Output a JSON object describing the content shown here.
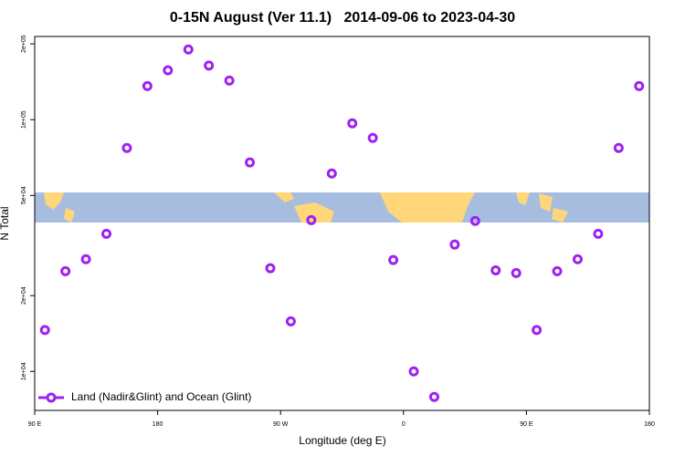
{
  "chart_data": {
    "type": "scatter",
    "title": "0-15N August (Ver 11.1)   2014-09-06 to 2023-04-30",
    "x_label": "Longitude (deg E)",
    "y_label": "N Total",
    "log_y": true,
    "legend_position": "lower left",
    "xlim": [
      90,
      540
    ],
    "ylim": [
      7000,
      214000
    ],
    "xticks": [
      {
        "value": 90,
        "label": "90 E"
      },
      180,
      {
        "value": 270,
        "label": "90 W"
      },
      {
        "value": 360,
        "label": "0"
      },
      {
        "value": 450,
        "label": "90 E"
      },
      {
        "value": 540,
        "label": "180"
      }
    ],
    "yticks": [
      {
        "value": 10000,
        "label": "1e+04"
      },
      {
        "value": 20000,
        "label": "2e+04"
      },
      {
        "value": 50000,
        "label": "5e+04"
      },
      {
        "value": 100000,
        "label": "1e+05"
      },
      {
        "value": 200000,
        "label": "2e+05"
      }
    ],
    "series": [
      {
        "name": "Land (Nadir&Glint) and Ocean (Glint)",
        "color": "#a020f0",
        "x": [
          97.5,
          112.5,
          127.5,
          142.5,
          157.5,
          172.5,
          187.5,
          202.5,
          217.5,
          232.5,
          247.5,
          262.5,
          277.5,
          292.5,
          307.5,
          322.5,
          337.5,
          352.5,
          367.5,
          382.5,
          397.5,
          412.5,
          427.5,
          442.5,
          457.5,
          472.5,
          487.5,
          502.5,
          517.5,
          532.5
        ],
        "values": [
          14600,
          25000,
          27900,
          35200,
          77200,
          136000,
          157000,
          190000,
          164000,
          143000,
          67600,
          25700,
          15800,
          39900,
          61100,
          96700,
          84600,
          27700,
          10000,
          7920,
          31900,
          39600,
          25200,
          24600,
          14600,
          25000,
          27900,
          35200,
          77200,
          136000
        ]
      }
    ]
  }
}
